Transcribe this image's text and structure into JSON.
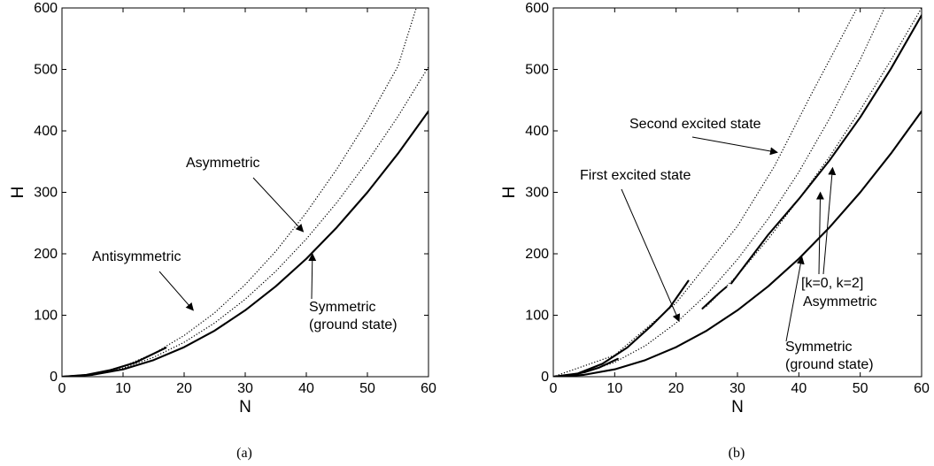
{
  "chart_data": [
    {
      "type": "line",
      "caption": "(a)",
      "xlabel": "N",
      "ylabel": "H",
      "xlim": [
        0,
        60
      ],
      "ylim": [
        0,
        600
      ],
      "xticks": [
        0,
        10,
        20,
        30,
        40,
        50,
        60
      ],
      "yticks": [
        0,
        100,
        200,
        300,
        400,
        500,
        600
      ],
      "grid": false,
      "series": [
        {
          "style": "solid",
          "x": [
            0,
            5,
            10,
            15,
            20,
            25,
            30,
            35,
            40,
            45,
            50,
            55,
            60
          ],
          "y": [
            0,
            3,
            12,
            27,
            48,
            75,
            108,
            147,
            192,
            243,
            300,
            363,
            432
          ]
        },
        {
          "style": "solid",
          "x": [
            0,
            4,
            8,
            12,
            17
          ],
          "y": [
            0,
            3,
            11,
            23,
            47
          ]
        },
        {
          "style": "dotted",
          "x": [
            0,
            5,
            10,
            15,
            20,
            25,
            30,
            35,
            40,
            45,
            50,
            55,
            60
          ],
          "y": [
            0,
            3.5,
            14,
            31.5,
            56,
            87.5,
            126,
            171.5,
            224,
            283.5,
            350,
            423.5,
            504
          ]
        },
        {
          "style": "dotted",
          "x": [
            0,
            5,
            10,
            15,
            20,
            25,
            30,
            35,
            40,
            45,
            50,
            55,
            58
          ],
          "y": [
            0,
            4.2,
            16.7,
            37.5,
            67,
            104,
            150,
            204,
            267,
            338,
            417,
            505,
            600
          ]
        }
      ],
      "annotations": [
        {
          "text": "Asymmetric",
          "arrow_to": [
            39.5,
            236
          ]
        },
        {
          "text": "Antisymmetric",
          "arrow_to": [
            21.5,
            108
          ]
        },
        {
          "text": "Symmetric",
          "arrow_to": [
            41,
            200
          ]
        },
        {
          "text": "(ground state)"
        }
      ]
    },
    {
      "type": "line",
      "caption": "(b)",
      "xlabel": "N",
      "ylabel": "H",
      "xlim": [
        0,
        60
      ],
      "ylim": [
        0,
        600
      ],
      "xticks": [
        0,
        10,
        20,
        30,
        40,
        50,
        60
      ],
      "yticks": [
        0,
        100,
        200,
        300,
        400,
        500,
        600
      ],
      "grid": false,
      "series": [
        {
          "style": "solid",
          "x": [
            0,
            5,
            10,
            15,
            20,
            25,
            30,
            35,
            40,
            45,
            50,
            55,
            60
          ],
          "y": [
            0,
            3,
            12,
            27,
            48,
            75,
            108,
            147,
            192,
            243,
            300,
            363,
            432
          ]
        },
        {
          "style": "solid",
          "x": [
            0,
            2.5,
            5,
            7.5,
            10.5
          ],
          "y": [
            0,
            2,
            7,
            15,
            29
          ]
        },
        {
          "style": "solid",
          "x": [
            0,
            4,
            8,
            12,
            16,
            19,
            22
          ],
          "y": [
            0,
            5.2,
            21,
            47,
            83,
            113,
            156
          ]
        },
        {
          "style": "solid",
          "x": [
            24.3,
            25.5,
            27,
            28.2
          ],
          "y": [
            111,
            122,
            136,
            146
          ]
        },
        {
          "style": "solid",
          "x": [
            29,
            35,
            40,
            45,
            50,
            55,
            60
          ],
          "y": [
            152,
            231,
            289,
            352,
            422,
            501,
            588
          ]
        },
        {
          "style": "dotted",
          "x": [
            0,
            5,
            10,
            15,
            20,
            25,
            30,
            35,
            40,
            45,
            50,
            55,
            60
          ],
          "y": [
            0,
            6.5,
            23.5,
            50.5,
            87.5,
            134,
            191,
            257,
            333,
            420,
            516,
            622,
            735
          ]
        },
        {
          "style": "dotted",
          "x": [
            25,
            30,
            35,
            40,
            45,
            50,
            55,
            60
          ],
          "y": [
            115,
            165,
            224,
            289,
            358,
            434,
            515,
            600
          ]
        },
        {
          "style": "dotted",
          "x": [
            0,
            10,
            20,
            30,
            36,
            42,
            49.5
          ],
          "y": [
            0,
            35,
            120,
            245,
            342,
            459,
            600
          ]
        }
      ],
      "annotations": [
        {
          "text": "Second excited state",
          "arrow_to": [
            36.5,
            365
          ]
        },
        {
          "text": "First excited state",
          "arrow_to": [
            20.5,
            90
          ]
        },
        {
          "text": "[k=0, k=2]",
          "arrow_to": [
            [
              45.5,
              340
            ],
            [
              43.5,
              300
            ]
          ]
        },
        {
          "text": "Asymmetric"
        },
        {
          "text": "Symmetric",
          "arrow_to": [
            40.5,
            195
          ]
        },
        {
          "text": "(ground state)"
        }
      ]
    }
  ]
}
